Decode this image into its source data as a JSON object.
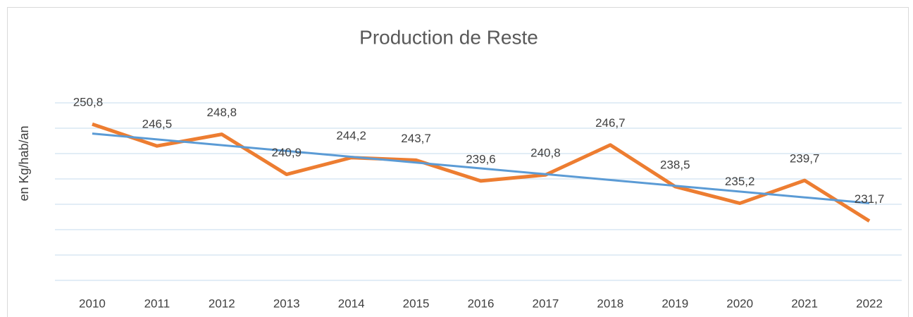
{
  "chart_data": {
    "type": "line",
    "title": "Production de Reste",
    "y_label": "en Kg/hab/an",
    "categories": [
      "2010",
      "2011",
      "2012",
      "2013",
      "2014",
      "2015",
      "2016",
      "2017",
      "2018",
      "2019",
      "2020",
      "2021",
      "2022"
    ],
    "series": [
      {
        "name": "Production de Reste",
        "color": "#ed7d31",
        "values": [
          250.8,
          246.5,
          248.8,
          240.9,
          244.2,
          243.7,
          239.6,
          240.8,
          246.7,
          238.5,
          235.2,
          239.7,
          231.7
        ],
        "value_labels": [
          "250,8",
          "246,5",
          "248,8",
          "240,9",
          "244,2",
          "243,7",
          "239,6",
          "240,8",
          "246,7",
          "238,5",
          "235,2",
          "239,7",
          "231,7"
        ]
      }
    ],
    "trendline": {
      "type": "linear",
      "color": "#5b9bd5"
    },
    "ylim": [
      220,
      255
    ],
    "yticks": [
      220,
      225,
      230,
      235,
      240,
      245,
      250,
      255
    ],
    "grid": true
  }
}
